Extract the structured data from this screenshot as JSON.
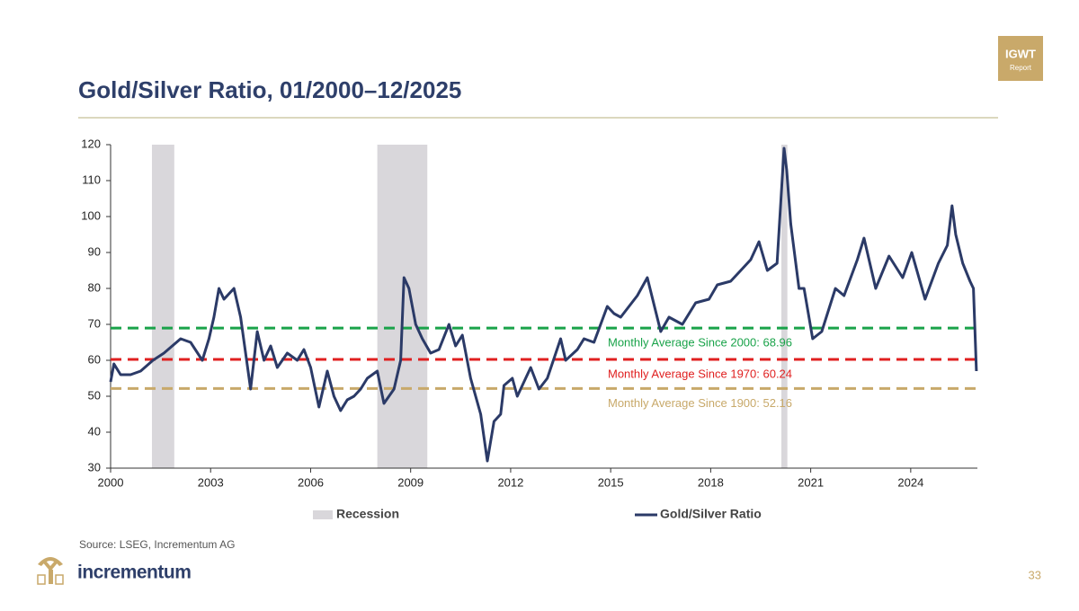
{
  "chart_data": {
    "type": "line",
    "title": "Gold/Silver Ratio, 01/2000–12/2025",
    "xlim": [
      2000,
      2026
    ],
    "xticks": [
      2000,
      2003,
      2006,
      2009,
      2012,
      2015,
      2018,
      2021,
      2024
    ],
    "ylim": [
      30,
      120
    ],
    "yticks": [
      30,
      40,
      50,
      60,
      70,
      80,
      90,
      100,
      110,
      120
    ],
    "grid": false,
    "legend": "bottom",
    "recession": {
      "name": "Recession",
      "color": "#d9d7db",
      "periods": [
        {
          "start": 2001.24,
          "end": 2001.91
        },
        {
          "start": 2008.0,
          "end": 2009.5
        },
        {
          "start": 2020.12,
          "end": 2020.3
        }
      ]
    },
    "reference_lines": [
      {
        "label": "Monthly Average Since 2000: 68.96",
        "value": 68.96,
        "color": "#1aa34a"
      },
      {
        "label": "Monthly Average Since 1970: 60.24",
        "value": 60.24,
        "color": "#e02020"
      },
      {
        "label": "Monthly Average Since 1900: 52.16",
        "value": 52.16,
        "color": "#c8a96a"
      }
    ],
    "series": [
      {
        "name": "Gold/Silver Ratio",
        "color": "#2b3a67",
        "x": [
          2000.0,
          2000.1,
          2000.3,
          2000.6,
          2000.9,
          2001.27,
          2001.6,
          2002.1,
          2002.4,
          2002.75,
          2002.95,
          2003.1,
          2003.25,
          2003.4,
          2003.7,
          2003.9,
          2004.2,
          2004.4,
          2004.6,
          2004.8,
          2005.0,
          2005.3,
          2005.6,
          2005.8,
          2006.0,
          2006.25,
          2006.5,
          2006.7,
          2006.9,
          2007.1,
          2007.3,
          2007.5,
          2007.7,
          2008.0,
          2008.2,
          2008.5,
          2008.7,
          2008.8,
          2008.95,
          2009.15,
          2009.35,
          2009.6,
          2009.85,
          2010.15,
          2010.35,
          2010.55,
          2010.8,
          2011.1,
          2011.3,
          2011.5,
          2011.7,
          2011.8,
          2012.05,
          2012.2,
          2012.6,
          2012.85,
          2013.1,
          2013.5,
          2013.65,
          2014.0,
          2014.2,
          2014.5,
          2014.9,
          2015.1,
          2015.3,
          2015.8,
          2016.1,
          2016.5,
          2016.75,
          2017.15,
          2017.55,
          2017.95,
          2018.2,
          2018.6,
          2018.9,
          2019.2,
          2019.45,
          2019.7,
          2019.99,
          2020.2,
          2020.28,
          2020.4,
          2020.65,
          2020.8,
          2021.06,
          2021.33,
          2021.74,
          2022.0,
          2022.4,
          2022.6,
          2022.95,
          2023.35,
          2023.76,
          2024.03,
          2024.43,
          2024.83,
          2025.1,
          2025.24,
          2025.35,
          2025.56,
          2025.78,
          2025.88,
          2025.97
        ],
        "values": [
          54,
          59,
          56,
          56,
          57,
          60,
          62,
          66,
          65,
          60,
          66,
          72,
          80,
          77,
          80,
          72,
          52,
          68,
          60,
          64,
          58,
          62,
          60,
          63,
          58,
          47,
          57,
          50,
          46,
          49,
          50,
          52,
          55,
          57,
          48,
          52,
          60,
          83,
          80,
          70,
          66,
          62,
          63,
          70,
          64,
          67,
          55,
          45,
          32,
          43,
          45,
          53,
          55,
          50,
          58,
          52,
          55,
          66,
          60,
          63,
          66,
          65,
          75,
          73,
          72,
          78,
          83,
          68,
          72,
          70,
          76,
          77,
          81,
          82,
          85,
          88,
          93,
          85,
          87,
          119,
          113,
          98,
          80,
          80,
          66,
          68,
          80,
          78,
          88,
          94,
          80,
          89,
          83,
          90,
          77,
          87,
          92,
          103,
          95,
          87,
          82,
          80,
          57
        ]
      }
    ]
  },
  "slide": {
    "badge_title": "IGWT",
    "badge_subtitle": "Report",
    "source": "Source: LSEG, Incrementum AG",
    "brand": "incrementum",
    "page_number": "33"
  }
}
